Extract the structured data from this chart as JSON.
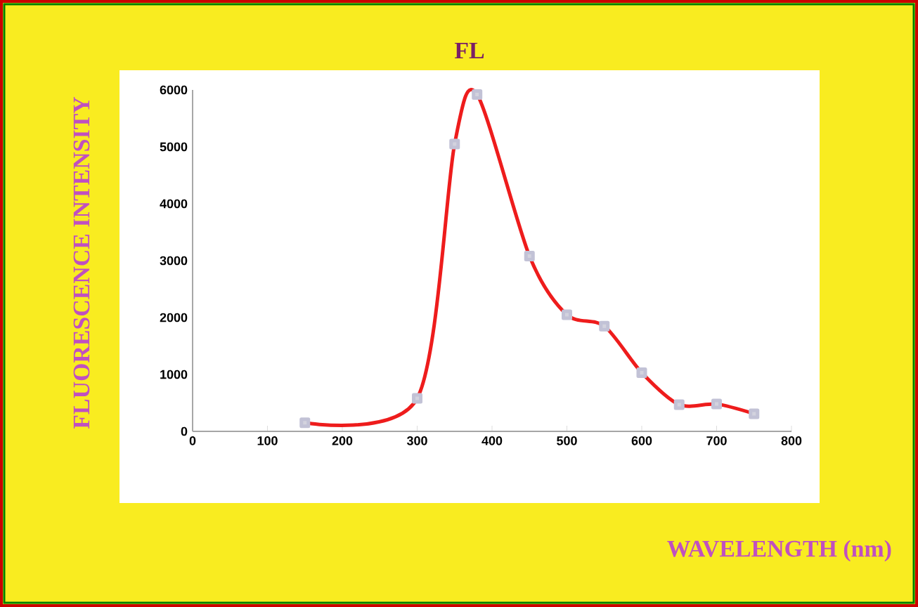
{
  "chart_data": {
    "type": "line",
    "title": "FL",
    "xlabel": "WAVELENGTH (nm)",
    "ylabel": "FLUORESCENCE INTENSITY",
    "x": [
      150,
      300,
      350,
      380,
      450,
      500,
      550,
      600,
      650,
      700,
      750
    ],
    "series": [
      {
        "color": "#ee1c1c",
        "values": [
          150,
          580,
          5050,
          5920,
          3080,
          2050,
          1850,
          1030,
          470,
          480,
          310
        ]
      }
    ],
    "xlim": [
      0,
      800
    ],
    "ylim": [
      0,
      6000
    ],
    "xticks": [
      0,
      100,
      200,
      300,
      400,
      500,
      600,
      700,
      800
    ],
    "yticks": [
      0,
      1000,
      2000,
      3000,
      4000,
      5000,
      6000
    ],
    "grid": false,
    "marker": "square",
    "line_style": "solid"
  }
}
